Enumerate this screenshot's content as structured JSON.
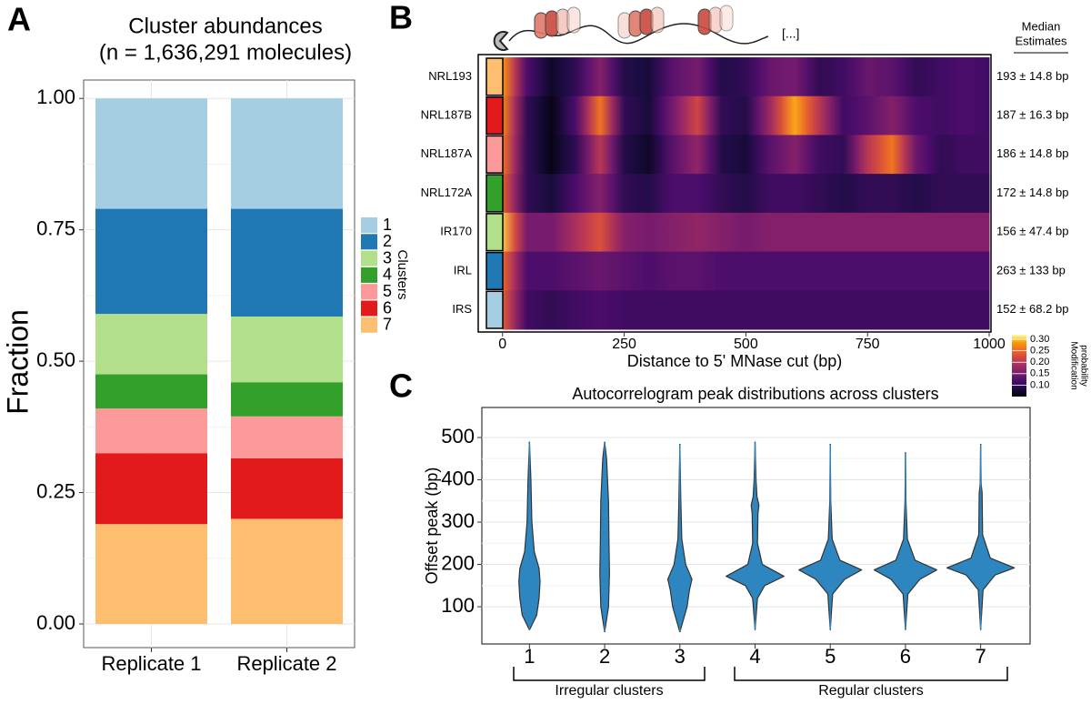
{
  "chart_data": [
    {
      "type": "stacked_bar",
      "panel_label": "A",
      "title": [
        "Cluster abundances",
        "(n = 1,636,291 molecules)"
      ],
      "categories": [
        "Replicate 1",
        "Replicate 2"
      ],
      "series": [
        {
          "name": "1",
          "color": "#a6cee3",
          "values": [
            0.21,
            0.21
          ]
        },
        {
          "name": "2",
          "color": "#1f78b4",
          "values": [
            0.2,
            0.205
          ]
        },
        {
          "name": "3",
          "color": "#b2df8a",
          "values": [
            0.115,
            0.125
          ]
        },
        {
          "name": "4",
          "color": "#33a02c",
          "values": [
            0.065,
            0.065
          ]
        },
        {
          "name": "5",
          "color": "#fb9a99",
          "values": [
            0.085,
            0.08
          ]
        },
        {
          "name": "6",
          "color": "#e31a1c",
          "values": [
            0.135,
            0.115
          ]
        },
        {
          "name": "7",
          "color": "#fdbf6f",
          "values": [
            0.19,
            0.2
          ]
        }
      ],
      "ylabel": "Fraction",
      "legend_title": "Clusters",
      "ylim": [
        -0.045,
        1.035
      ],
      "yticks": [
        {
          "value": 0,
          "label": "0.00"
        },
        {
          "value": 0.25,
          "label": "0.25"
        },
        {
          "value": 0.5,
          "label": "0.50"
        },
        {
          "value": 0.75,
          "label": "0.75"
        },
        {
          "value": 1,
          "label": "1.00"
        }
      ],
      "grid": true
    },
    {
      "type": "heatmap",
      "panel_label": "B",
      "rows": [
        "NRL193",
        "NRL187B",
        "NRL187A",
        "NRL172A",
        "IR170",
        "IRL",
        "IRS"
      ],
      "row_colors": [
        "#fdbf6f",
        "#e31a1c",
        "#fb9a99",
        "#33a02c",
        "#b2df8a",
        "#1f78b4",
        "#a6cee3"
      ],
      "x": [
        0,
        50,
        100,
        150,
        200,
        250,
        300,
        350,
        400,
        450,
        500,
        550,
        600,
        650,
        700,
        750,
        800,
        850,
        900,
        950,
        1000
      ],
      "values": [
        [
          0.28,
          0.12,
          0.07,
          0.1,
          0.16,
          0.09,
          0.08,
          0.13,
          0.15,
          0.09,
          0.1,
          0.14,
          0.15,
          0.1,
          0.11,
          0.14,
          0.13,
          0.1,
          0.11,
          0.12,
          0.11
        ],
        [
          0.27,
          0.1,
          0.06,
          0.12,
          0.26,
          0.1,
          0.08,
          0.15,
          0.22,
          0.1,
          0.09,
          0.18,
          0.29,
          0.2,
          0.11,
          0.13,
          0.16,
          0.12,
          0.11,
          0.12,
          0.11
        ],
        [
          0.26,
          0.1,
          0.06,
          0.1,
          0.2,
          0.09,
          0.07,
          0.13,
          0.17,
          0.09,
          0.08,
          0.13,
          0.16,
          0.11,
          0.1,
          0.2,
          0.26,
          0.14,
          0.1,
          0.11,
          0.11
        ],
        [
          0.24,
          0.1,
          0.08,
          0.12,
          0.16,
          0.1,
          0.09,
          0.12,
          0.12,
          0.1,
          0.09,
          0.11,
          0.11,
          0.1,
          0.09,
          0.1,
          0.1,
          0.09,
          0.1,
          0.1,
          0.1
        ],
        [
          0.3,
          0.15,
          0.15,
          0.19,
          0.23,
          0.16,
          0.15,
          0.16,
          0.17,
          0.16,
          0.15,
          0.16,
          0.16,
          0.16,
          0.16,
          0.16,
          0.16,
          0.16,
          0.16,
          0.16,
          0.16
        ],
        [
          0.25,
          0.12,
          0.12,
          0.13,
          0.14,
          0.13,
          0.12,
          0.13,
          0.13,
          0.12,
          0.12,
          0.12,
          0.12,
          0.12,
          0.12,
          0.12,
          0.12,
          0.12,
          0.12,
          0.12,
          0.12
        ],
        [
          0.24,
          0.11,
          0.1,
          0.11,
          0.12,
          0.11,
          0.11,
          0.11,
          0.11,
          0.11,
          0.11,
          0.11,
          0.11,
          0.11,
          0.11,
          0.11,
          0.11,
          0.11,
          0.11,
          0.11,
          0.11
        ]
      ],
      "xlim": [
        -50,
        1000
      ],
      "xticks": [
        0,
        250,
        500,
        750,
        1000
      ],
      "xlabel": "Distance to 5' MNase cut (bp)",
      "colormap": "inferno",
      "clim": [
        0.05,
        0.32
      ],
      "colorbar_title": [
        "Modification",
        "probability"
      ],
      "colorbar_ticks": [
        {
          "value": 0.1,
          "label": "0.10"
        },
        {
          "value": 0.15,
          "label": "0.15"
        },
        {
          "value": 0.2,
          "label": "0.20"
        },
        {
          "value": 0.25,
          "label": "0.25"
        },
        {
          "value": 0.3,
          "label": "0.30"
        }
      ],
      "estimates_title": [
        "Median",
        "Estimates"
      ],
      "estimates": [
        "193 ± 14.8 bp",
        "187 ± 16.3 bp",
        "186 ± 14.8 bp",
        "172 ± 14.8 bp",
        "156 ± 47.4 bp",
        "263 ± 133 bp",
        "152 ± 68.2 bp"
      ],
      "annotation": "[...]"
    },
    {
      "type": "violin",
      "panel_label": "C",
      "title": "Autocorrelogram peak distributions across clusters",
      "ylabel": "Offset peak (bp)",
      "categories": [
        "1",
        "2",
        "3",
        "4",
        "5",
        "6",
        "7"
      ],
      "color": "#2e86c1",
      "violins": [
        {
          "y": [
            45,
            80,
            120,
            160,
            190,
            230,
            300,
            400,
            490
          ],
          "width": [
            0,
            0.15,
            0.2,
            0.22,
            0.2,
            0.1,
            0.05,
            0.03,
            0
          ]
        },
        {
          "y": [
            40,
            100,
            180,
            250,
            350,
            450,
            490
          ],
          "width": [
            0,
            0.08,
            0.1,
            0.09,
            0.08,
            0.04,
            0
          ]
        },
        {
          "y": [
            40,
            100,
            140,
            165,
            200,
            260,
            350,
            485
          ],
          "width": [
            0,
            0.15,
            0.2,
            0.25,
            0.12,
            0.04,
            0.02,
            0
          ]
        },
        {
          "y": [
            45,
            120,
            150,
            172,
            200,
            250,
            320,
            340,
            360,
            400,
            490
          ],
          "width": [
            0,
            0.05,
            0.2,
            0.6,
            0.15,
            0.05,
            0.06,
            0.08,
            0.04,
            0.02,
            0
          ]
        },
        {
          "y": [
            45,
            130,
            165,
            187,
            210,
            260,
            350,
            485
          ],
          "width": [
            0,
            0.05,
            0.3,
            0.65,
            0.2,
            0.04,
            0.01,
            0
          ]
        },
        {
          "y": [
            45,
            130,
            165,
            187,
            210,
            260,
            350,
            465
          ],
          "width": [
            0,
            0.05,
            0.3,
            0.65,
            0.2,
            0.04,
            0.01,
            0
          ]
        },
        {
          "y": [
            45,
            140,
            175,
            192,
            215,
            270,
            370,
            390,
            485
          ],
          "width": [
            0,
            0.05,
            0.3,
            0.7,
            0.2,
            0.04,
            0.03,
            0.01,
            0
          ]
        }
      ],
      "ylim": [
        12,
        571
      ],
      "yticks": [
        100,
        200,
        300,
        400,
        500
      ],
      "group_labels": [
        "Irregular clusters",
        "Regular clusters"
      ],
      "grid": true
    }
  ]
}
